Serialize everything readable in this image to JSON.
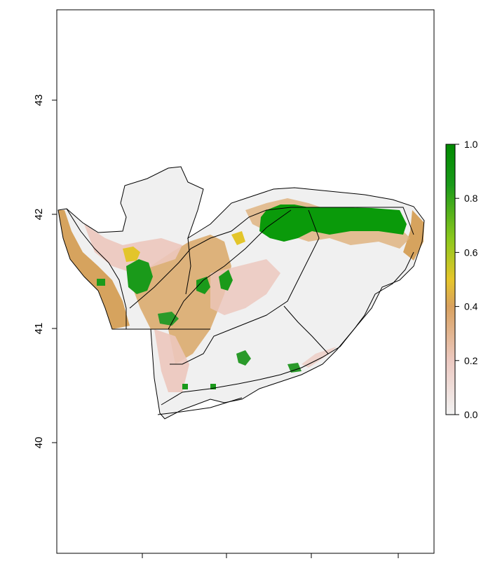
{
  "chart_data": {
    "type": "heatmap",
    "title": "",
    "xlabel": "",
    "ylabel": "",
    "y_ticks": [
      "40",
      "41",
      "42",
      "43"
    ],
    "y_tick_values": [
      40,
      41,
      42,
      43
    ],
    "x_ticks_unlabeled": 4,
    "ylim": [
      39.05,
      43.8
    ],
    "legend": {
      "placement": "right",
      "ticks": [
        "0.0",
        "0.2",
        "0.4",
        "0.6",
        "0.8",
        "1.0"
      ],
      "tick_values": [
        0.0,
        0.2,
        0.4,
        0.6,
        0.8,
        1.0
      ],
      "range": [
        0,
        1
      ],
      "colors": [
        "#f2f2f2",
        "#ecc9c1",
        "#d9a15f",
        "#e6c62a",
        "#8cc81c",
        "#1a9a1a",
        "#008a00"
      ]
    },
    "region_colors": {
      "outline": "#000000",
      "low": "#f0f0f0",
      "pink": "#ecc6bc",
      "tan": "#d6a35e",
      "yellow": "#e3c52a",
      "green": "#0a9a0a"
    }
  }
}
